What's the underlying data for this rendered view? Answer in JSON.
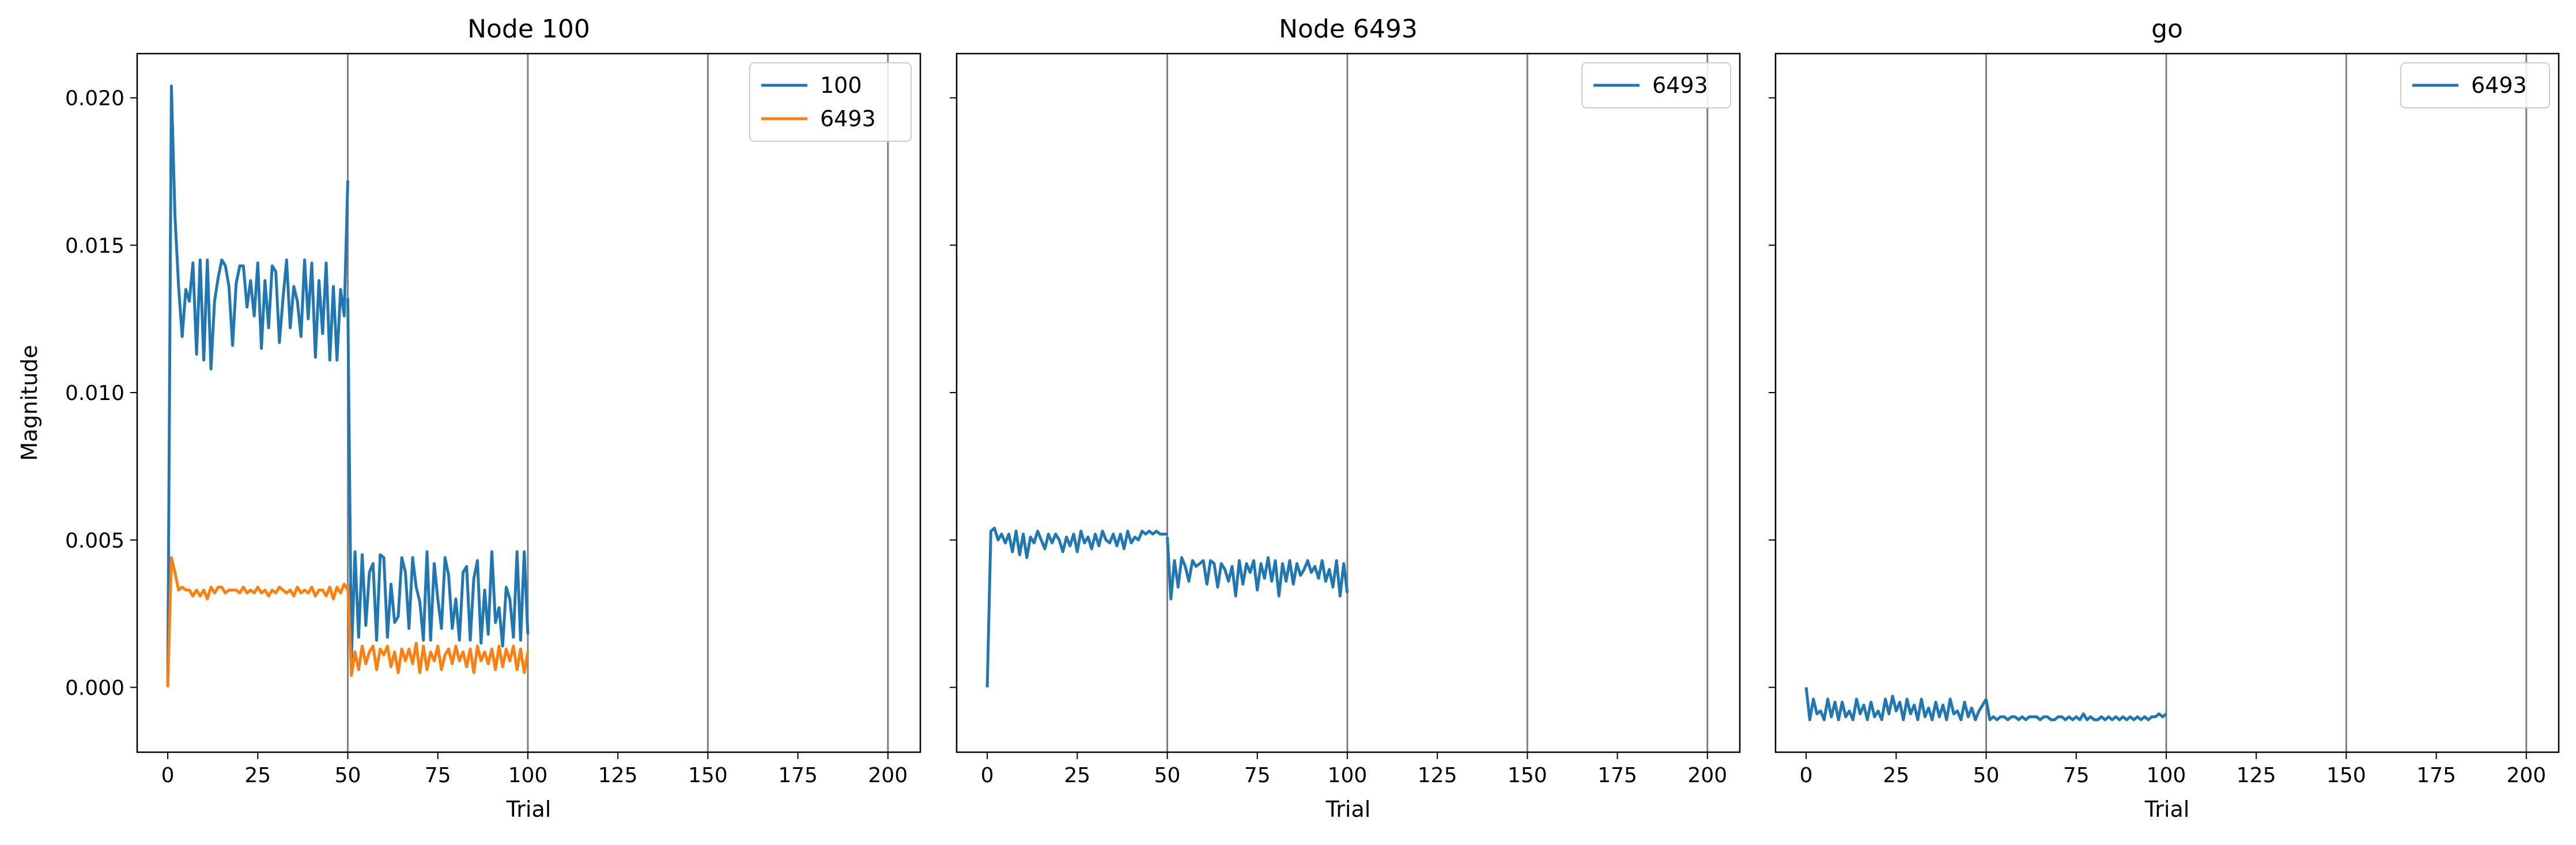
{
  "chart_data": [
    {
      "type": "line",
      "title": "Node 100",
      "xlabel": "Trial",
      "ylabel": "Magnitude",
      "xlim": [
        -8.5,
        209
      ],
      "ylim": [
        -0.0022,
        0.0215
      ],
      "xticks": [
        0,
        25,
        50,
        75,
        100,
        125,
        150,
        175,
        200
      ],
      "yticks": [
        0.0,
        0.005,
        0.01,
        0.015,
        0.02
      ],
      "ytick_labels": [
        "0.000",
        "0.005",
        "0.010",
        "0.015",
        "0.020"
      ],
      "vlines": [
        50,
        100,
        150,
        200
      ],
      "legend_position": "top-right",
      "series": [
        {
          "name": "100",
          "color": "#1f77b4",
          "segments": [
            {
              "x_start": 0,
              "values": [
                0.0001,
                0.0204,
                0.016,
                0.0136,
                0.0119,
                0.0135,
                0.0131,
                0.0144,
                0.0113,
                0.0145,
                0.0111,
                0.0145,
                0.0108,
                0.0131,
                0.0139,
                0.0145,
                0.0143,
                0.0136,
                0.0116,
                0.0137,
                0.0143,
                0.0143,
                0.0129,
                0.0138,
                0.0126,
                0.0144,
                0.0115,
                0.0138,
                0.0122,
                0.0143,
                0.0141,
                0.0117,
                0.0132,
                0.0145,
                0.0122,
                0.0136,
                0.0131,
                0.0119,
                0.0145,
                0.0125,
                0.0144,
                0.0112,
                0.0138,
                0.012,
                0.0144,
                0.0111,
                0.0136,
                0.0111,
                0.0135,
                0.0126,
                0.0172
              ]
            },
            {
              "x_start": 50,
              "values": [
                0.0132,
                0.001,
                0.0046,
                0.0017,
                0.0045,
                0.0021,
                0.0039,
                0.0042,
                0.0016,
                0.0045,
                0.0044,
                0.0017,
                0.0035,
                0.0022,
                0.0024,
                0.0044,
                0.0039,
                0.002,
                0.0044,
                0.0034,
                0.0029,
                0.0016,
                0.0046,
                0.0016,
                0.0042,
                0.003,
                0.002,
                0.0044,
                0.0038,
                0.002,
                0.003,
                0.0016,
                0.0039,
                0.0041,
                0.0016,
                0.0037,
                0.0043,
                0.0015,
                0.0033,
                0.0018,
                0.0046,
                0.0022,
                0.0027,
                0.0014,
                0.0034,
                0.003,
                0.0017,
                0.0046,
                0.0016,
                0.0046,
                0.0018
              ]
            }
          ]
        },
        {
          "name": "6493",
          "color": "#ff7f0e",
          "segments": [
            {
              "x_start": 0,
              "values": [
                0.0,
                0.0044,
                0.0039,
                0.0033,
                0.0034,
                0.0033,
                0.0033,
                0.0031,
                0.0033,
                0.0031,
                0.0033,
                0.003,
                0.0034,
                0.0032,
                0.0034,
                0.0034,
                0.0032,
                0.0033,
                0.0033,
                0.0033,
                0.0032,
                0.0034,
                0.0032,
                0.0033,
                0.0032,
                0.0034,
                0.0032,
                0.0033,
                0.0031,
                0.0033,
                0.0032,
                0.0034,
                0.0033,
                0.0032,
                0.0033,
                0.0031,
                0.0034,
                0.0032,
                0.0033,
                0.0032,
                0.0034,
                0.0031,
                0.0033,
                0.0033,
                0.0031,
                0.0034,
                0.003,
                0.0034,
                0.0032,
                0.0035,
                0.0033
              ]
            },
            {
              "x_start": 50,
              "values": [
                0.0035,
                0.0004,
                0.0012,
                0.0006,
                0.0014,
                0.0008,
                0.0012,
                0.0014,
                0.0006,
                0.0013,
                0.0011,
                0.0014,
                0.0007,
                0.0012,
                0.0005,
                0.0013,
                0.0009,
                0.0013,
                0.0008,
                0.0015,
                0.0005,
                0.0014,
                0.0006,
                0.0012,
                0.0009,
                0.0014,
                0.0006,
                0.0011,
                0.0013,
                0.0008,
                0.0014,
                0.0009,
                0.0012,
                0.0007,
                0.0013,
                0.0005,
                0.0014,
                0.0009,
                0.0012,
                0.0008,
                0.0013,
                0.0006,
                0.0014,
                0.0007,
                0.0013,
                0.0009,
                0.0014,
                0.0006,
                0.0013,
                0.0005,
                0.0012
              ]
            }
          ]
        }
      ]
    },
    {
      "type": "line",
      "title": "Node 6493",
      "xlabel": "Trial",
      "ylabel": "",
      "xlim": [
        -8.5,
        209
      ],
      "ylim": [
        -0.0022,
        0.0215
      ],
      "xticks": [
        0,
        25,
        50,
        75,
        100,
        125,
        150,
        175,
        200
      ],
      "yticks": [
        0.0,
        0.005,
        0.01,
        0.015,
        0.02
      ],
      "vlines": [
        50,
        100,
        150,
        200
      ],
      "legend_position": "top-right",
      "series": [
        {
          "name": "6493",
          "color": "#1f77b4",
          "segments": [
            {
              "x_start": 0,
              "values": [
                0.0,
                0.0053,
                0.0054,
                0.005,
                0.0052,
                0.0049,
                0.0052,
                0.0046,
                0.0053,
                0.0045,
                0.0052,
                0.0044,
                0.0051,
                0.0049,
                0.0053,
                0.005,
                0.0047,
                0.0052,
                0.0049,
                0.0052,
                0.005,
                0.0046,
                0.0051,
                0.0048,
                0.0052,
                0.0046,
                0.0053,
                0.0049,
                0.0051,
                0.0047,
                0.0052,
                0.0048,
                0.0053,
                0.005,
                0.0049,
                0.0052,
                0.0048,
                0.0052,
                0.0047,
                0.0053,
                0.0049,
                0.0051,
                0.005,
                0.0053,
                0.0052,
                0.0053,
                0.0052,
                0.0053,
                0.0052,
                0.0052,
                0.0052
              ]
            },
            {
              "x_start": 50,
              "values": [
                0.0051,
                0.003,
                0.0043,
                0.0034,
                0.0044,
                0.0041,
                0.0036,
                0.0043,
                0.0041,
                0.0042,
                0.0043,
                0.0035,
                0.0043,
                0.0042,
                0.0034,
                0.0042,
                0.004,
                0.0036,
                0.0041,
                0.0031,
                0.0043,
                0.0035,
                0.0042,
                0.0039,
                0.0043,
                0.0033,
                0.0042,
                0.0037,
                0.0044,
                0.0036,
                0.0043,
                0.0031,
                0.0042,
                0.0036,
                0.0043,
                0.0035,
                0.0042,
                0.0038,
                0.004,
                0.0043,
                0.0039,
                0.0041,
                0.0037,
                0.0043,
                0.0036,
                0.004,
                0.0034,
                0.0043,
                0.0031,
                0.0042,
                0.0032
              ]
            }
          ]
        }
      ]
    },
    {
      "type": "line",
      "title": "go",
      "xlabel": "Trial",
      "ylabel": "",
      "xlim": [
        -8.5,
        209
      ],
      "ylim": [
        -0.0022,
        0.0215
      ],
      "xticks": [
        0,
        25,
        50,
        75,
        100,
        125,
        150,
        175,
        200
      ],
      "yticks": [
        0.0,
        0.005,
        0.01,
        0.015,
        0.02
      ],
      "vlines": [
        50,
        100,
        150,
        200
      ],
      "legend_position": "top-right",
      "series": [
        {
          "name": "6493",
          "color": "#1f77b4",
          "segments": [
            {
              "x_start": 0,
              "values": [
                0.0,
                -0.0011,
                -0.0004,
                -0.0009,
                -0.0008,
                -0.0011,
                -0.0004,
                -0.001,
                -0.0005,
                -0.0011,
                -0.0005,
                -0.001,
                -0.0008,
                -0.0011,
                -0.0004,
                -0.0009,
                -0.0006,
                -0.0011,
                -0.0005,
                -0.001,
                -0.0008,
                -0.0011,
                -0.0004,
                -0.0009,
                -0.0003,
                -0.0008,
                -0.0005,
                -0.0011,
                -0.0004,
                -0.0009,
                -0.0006,
                -0.0011,
                -0.0004,
                -0.001,
                -0.0007,
                -0.0011,
                -0.0005,
                -0.001,
                -0.0006,
                -0.0011,
                -0.0004,
                -0.0009,
                -0.0008,
                -0.0011,
                -0.0005,
                -0.001,
                -0.0007,
                -0.0011,
                -0.0008,
                -0.0006,
                -0.0004
              ]
            },
            {
              "x_start": 50,
              "values": [
                -0.0004,
                -0.0011,
                -0.001,
                -0.0011,
                -0.001,
                -0.001,
                -0.0011,
                -0.001,
                -0.001,
                -0.0011,
                -0.001,
                -0.0011,
                -0.001,
                -0.001,
                -0.001,
                -0.0011,
                -0.001,
                -0.001,
                -0.0011,
                -0.0011,
                -0.001,
                -0.001,
                -0.0011,
                -0.001,
                -0.0011,
                -0.001,
                -0.0011,
                -0.0009,
                -0.0011,
                -0.001,
                -0.0011,
                -0.0011,
                -0.001,
                -0.0011,
                -0.001,
                -0.0011,
                -0.001,
                -0.0011,
                -0.001,
                -0.0011,
                -0.001,
                -0.0011,
                -0.001,
                -0.0011,
                -0.001,
                -0.0011,
                -0.001,
                -0.001,
                -0.0009,
                -0.001,
                -0.0009
              ]
            }
          ]
        }
      ]
    }
  ]
}
